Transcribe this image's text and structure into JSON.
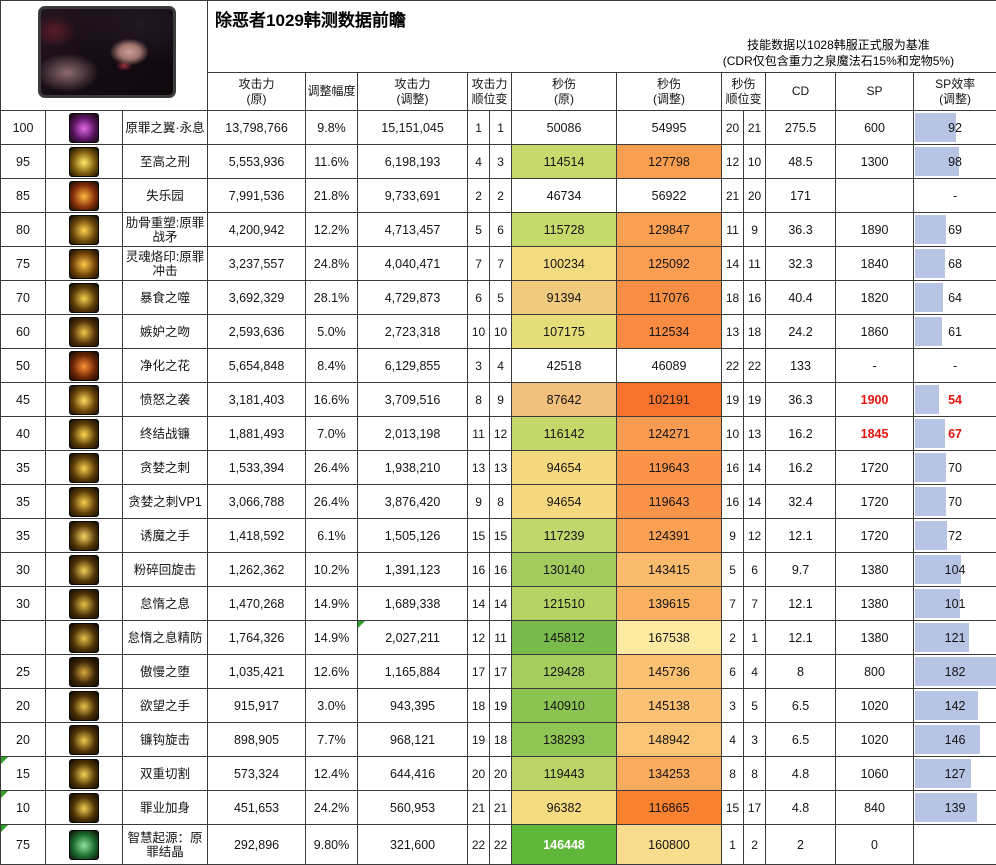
{
  "header": {
    "title": "除恶者1029韩测数据前瞻",
    "note1": "技能数据以1028韩服正式服为基准",
    "note2": "(CDR仅包含重力之泉魔法石15%和宠物5%)",
    "portrait_icon": "class-portrait"
  },
  "columns": {
    "atk_orig": {
      "l1": "攻击力",
      "l2": "(原)"
    },
    "adjust": {
      "l1": "调整幅度",
      "l2": ""
    },
    "atk_new": {
      "l1": "攻击力",
      "l2": "(调整)"
    },
    "atk_rank": {
      "l1": "攻击力",
      "l2": "顺位变"
    },
    "dps_orig": {
      "l1": "秒伤",
      "l2": "(原)"
    },
    "dps_new": {
      "l1": "秒伤",
      "l2": "(调整)"
    },
    "dps_rank": {
      "l1": "秒伤",
      "l2": "顺位变"
    },
    "cd": {
      "l1": "CD",
      "l2": ""
    },
    "sp": {
      "l1": "SP",
      "l2": ""
    },
    "sp_eff": {
      "l1": "SP效率",
      "l2": "(调整)"
    }
  },
  "colors": {
    "databar": "#b7c4e4",
    "flag_red": "#e8140c",
    "corner_green": "#33a02c",
    "border": "#3b3b3b"
  },
  "bar_scale_max": 185,
  "rows": [
    {
      "level": "100",
      "name": "原罪之翼·永息",
      "icon_name": "icon-sin-wings",
      "icon_glow": "#e06ae8",
      "icon_base": "#5a1460",
      "atk_orig": "13,798,766",
      "adjust": "9.8%",
      "atk_new": "15,151,045",
      "atk_rank": [
        "1",
        "1"
      ],
      "dps_orig": "50086",
      "dps_orig_bg": "",
      "dps_new": "54995",
      "dps_new_bg": "",
      "dps_rank": [
        "20",
        "21"
      ],
      "cd": "275.5",
      "sp": "600",
      "eff": "92",
      "eff_bar": 92
    },
    {
      "level": "95",
      "name": "至高之刑",
      "icon_name": "icon-supreme-punishment",
      "icon_glow": "#ffec6a",
      "icon_base": "#7d5a0c",
      "atk_orig": "5,553,936",
      "adjust": "11.6%",
      "atk_new": "6,198,193",
      "atk_rank": [
        "4",
        "3"
      ],
      "dps_orig": "114514",
      "dps_orig_bg": "#c8da6b",
      "dps_new": "127798",
      "dps_new_bg": "#f99e4f",
      "dps_rank": [
        "12",
        "10"
      ],
      "cd": "48.5",
      "sp": "1300",
      "eff": "98",
      "eff_bar": 98
    },
    {
      "level": "85",
      "name": "失乐园",
      "icon_name": "icon-paradise-lost",
      "icon_glow": "#ffb840",
      "icon_base": "#86300a",
      "atk_orig": "7,991,536",
      "adjust": "21.8%",
      "atk_new": "9,733,691",
      "atk_rank": [
        "2",
        "2"
      ],
      "dps_orig": "46734",
      "dps_orig_bg": "",
      "dps_new": "56922",
      "dps_new_bg": "",
      "dps_rank": [
        "21",
        "20"
      ],
      "cd": "171",
      "sp": "",
      "eff": "-",
      "eff_bar": 0
    },
    {
      "level": "80",
      "name": "肋骨重塑:原罪战矛",
      "icon_name": "icon-rib-spear",
      "icon_glow": "#ffd24e",
      "icon_base": "#6d4a0c",
      "atk_orig": "4,200,942",
      "adjust": "12.2%",
      "atk_new": "4,713,457",
      "atk_rank": [
        "5",
        "6"
      ],
      "dps_orig": "115728",
      "dps_orig_bg": "#c6d96b",
      "dps_new": "129847",
      "dps_new_bg": "#f9a053",
      "dps_rank": [
        "11",
        "9"
      ],
      "cd": "36.3",
      "sp": "1890",
      "eff": "69",
      "eff_bar": 69
    },
    {
      "level": "75",
      "name": "灵魂烙印:原罪冲击",
      "icon_name": "icon-soul-brand",
      "icon_glow": "#ffc94a",
      "icon_base": "#744408",
      "atk_orig": "3,237,557",
      "adjust": "24.8%",
      "atk_new": "4,040,471",
      "atk_rank": [
        "7",
        "7"
      ],
      "dps_orig": "100234",
      "dps_orig_bg": "#f3dc80",
      "dps_new": "125092",
      "dps_new_bg": "#f99e52",
      "dps_rank": [
        "14",
        "11"
      ],
      "cd": "32.3",
      "sp": "1840",
      "eff": "68",
      "eff_bar": 68
    },
    {
      "level": "70",
      "name": "暴食之噬",
      "icon_name": "icon-gluttony-bite",
      "icon_glow": "#f5d04e",
      "icon_base": "#5f3e08",
      "atk_orig": "3,692,329",
      "adjust": "28.1%",
      "atk_new": "4,729,873",
      "atk_rank": [
        "6",
        "5"
      ],
      "dps_orig": "91394",
      "dps_orig_bg": "#f0cb7d",
      "dps_new": "117076",
      "dps_new_bg": "#f88d44",
      "dps_rank": [
        "18",
        "16"
      ],
      "cd": "40.4",
      "sp": "1820",
      "eff": "64",
      "eff_bar": 64
    },
    {
      "level": "60",
      "name": "嫉妒之吻",
      "icon_name": "icon-envy-kiss",
      "icon_glow": "#f2c648",
      "icon_base": "#553408",
      "atk_orig": "2,593,636",
      "adjust": "5.0%",
      "atk_new": "2,723,318",
      "atk_rank": [
        "10",
        "10"
      ],
      "dps_orig": "107175",
      "dps_orig_bg": "#e6de7a",
      "dps_new": "112534",
      "dps_new_bg": "#f88a42",
      "dps_rank": [
        "13",
        "18"
      ],
      "cd": "24.2",
      "sp": "1860",
      "eff": "61",
      "eff_bar": 61
    },
    {
      "level": "50",
      "name": "净化之花",
      "icon_name": "icon-purify-flower",
      "icon_glow": "#ff9435",
      "icon_base": "#6e2606",
      "atk_orig": "5,654,848",
      "adjust": "8.4%",
      "atk_new": "6,129,855",
      "atk_rank": [
        "3",
        "4"
      ],
      "dps_orig": "42518",
      "dps_orig_bg": "",
      "dps_new": "46089",
      "dps_new_bg": "",
      "dps_rank": [
        "22",
        "22"
      ],
      "cd": "133",
      "sp": "-",
      "eff": "-",
      "eff_bar": 0
    },
    {
      "level": "45",
      "name": "愤怒之袭",
      "icon_name": "icon-wrath-assault",
      "icon_glow": "#ffd95c",
      "icon_base": "#6a4409",
      "atk_orig": "3,181,403",
      "adjust": "16.6%",
      "atk_new": "3,709,516",
      "atk_rank": [
        "8",
        "9"
      ],
      "dps_orig": "87642",
      "dps_orig_bg": "#f0c07c",
      "dps_new": "102191",
      "dps_new_bg": "#f7722c",
      "dps_rank": [
        "19",
        "19"
      ],
      "cd": "36.3",
      "sp": "1900",
      "sp_red": true,
      "eff": "54",
      "eff_red": true,
      "eff_bar": 54
    },
    {
      "level": "40",
      "name": "终结战镰",
      "icon_name": "icon-final-scythe",
      "icon_glow": "#ffd64f",
      "icon_base": "#5c3c08",
      "atk_orig": "1,881,493",
      "adjust": "7.0%",
      "atk_new": "2,013,198",
      "atk_rank": [
        "11",
        "12"
      ],
      "dps_orig": "116142",
      "dps_orig_bg": "#c5d96a",
      "dps_new": "124271",
      "dps_new_bg": "#f89a50",
      "dps_rank": [
        "10",
        "13"
      ],
      "cd": "16.2",
      "sp": "1845",
      "sp_red": true,
      "eff": "67",
      "eff_red": true,
      "eff_bar": 67
    },
    {
      "level": "35",
      "name": "贪婪之刺",
      "icon_name": "icon-greed-thorn",
      "icon_glow": "#f7cf4d",
      "icon_base": "#5e3d08",
      "atk_orig": "1,533,394",
      "adjust": "26.4%",
      "atk_new": "1,938,210",
      "atk_rank": [
        "13",
        "13"
      ],
      "dps_orig": "94654",
      "dps_orig_bg": "#f5d97f",
      "dps_new": "119643",
      "dps_new_bg": "#f9944a",
      "dps_rank": [
        "16",
        "14"
      ],
      "cd": "16.2",
      "sp": "1720",
      "eff": "70",
      "eff_bar": 70
    },
    {
      "level": "35",
      "name": "贪婪之刺VP1",
      "icon_name": "icon-greed-thorn-vp1",
      "icon_glow": "#f7cf4d",
      "icon_base": "#5e3d08",
      "atk_orig": "3,066,788",
      "adjust": "26.4%",
      "atk_new": "3,876,420",
      "atk_rank": [
        "9",
        "8"
      ],
      "dps_orig": "94654",
      "dps_orig_bg": "#f5d97f",
      "dps_new": "119643",
      "dps_new_bg": "#f9944a",
      "dps_rank": [
        "16",
        "14"
      ],
      "cd": "32.4",
      "sp": "1720",
      "eff": "70",
      "eff_bar": 70
    },
    {
      "level": "35",
      "name": "诱魔之手",
      "icon_name": "icon-tempt-hand",
      "icon_glow": "#f7d567",
      "icon_base": "#5a3a08",
      "atk_orig": "1,418,592",
      "adjust": "6.1%",
      "atk_new": "1,505,126",
      "atk_rank": [
        "15",
        "15"
      ],
      "dps_orig": "117239",
      "dps_orig_bg": "#c0d76c",
      "dps_new": "124391",
      "dps_new_bg": "#f9a055",
      "dps_rank": [
        "9",
        "12"
      ],
      "cd": "12.1",
      "sp": "1720",
      "eff": "72",
      "eff_bar": 72
    },
    {
      "level": "30",
      "name": "粉碎回旋击",
      "icon_name": "icon-crush-spin",
      "icon_glow": "#f0cf55",
      "icon_base": "#523508",
      "atk_orig": "1,262,362",
      "adjust": "10.2%",
      "atk_new": "1,391,123",
      "atk_rank": [
        "16",
        "16"
      ],
      "dps_orig": "130140",
      "dps_orig_bg": "#a2cc5e",
      "dps_new": "143415",
      "dps_new_bg": "#fabb6d",
      "dps_rank": [
        "5",
        "6"
      ],
      "cd": "9.7",
      "sp": "1380",
      "eff": "104",
      "eff_bar": 104
    },
    {
      "level": "30",
      "name": "怠惰之息",
      "icon_name": "icon-sloth-breath",
      "icon_glow": "#e8c24a",
      "icon_base": "#4e3206",
      "atk_orig": "1,470,268",
      "adjust": "14.9%",
      "atk_new": "1,689,338",
      "atk_rank": [
        "14",
        "14"
      ],
      "dps_orig": "121510",
      "dps_orig_bg": "#b6d366",
      "dps_new": "139615",
      "dps_new_bg": "#fab061",
      "dps_rank": [
        "7",
        "7"
      ],
      "cd": "12.1",
      "sp": "1380",
      "eff": "101",
      "eff_bar": 101
    },
    {
      "level": "",
      "name": "怠惰之息精防",
      "icon_name": "icon-sloth-breath-def",
      "icon_glow": "#e8c24a",
      "icon_base": "#4e3206",
      "atk_orig": "1,764,326",
      "adjust": "14.9%",
      "atk_new": "2,027,211",
      "atk_new_corner": true,
      "atk_rank": [
        "12",
        "11"
      ],
      "dps_orig": "145812",
      "dps_orig_bg": "#79bb4c",
      "dps_new": "167538",
      "dps_new_bg": "#fdeaa2",
      "dps_rank": [
        "2",
        "1"
      ],
      "cd": "12.1",
      "sp": "1380",
      "eff": "121",
      "eff_bar": 121
    },
    {
      "level": "25",
      "name": "傲慢之堕",
      "icon_name": "icon-pride-fall",
      "icon_glow": "#d8a93c",
      "icon_base": "#3c2505",
      "atk_orig": "1,035,421",
      "adjust": "12.6%",
      "atk_new": "1,165,884",
      "atk_rank": [
        "17",
        "17"
      ],
      "dps_orig": "129428",
      "dps_orig_bg": "#a4cc5f",
      "dps_new": "145736",
      "dps_new_bg": "#fbc172",
      "dps_rank": [
        "6",
        "4"
      ],
      "cd": "8",
      "sp": "800",
      "eff": "182",
      "eff_bar": 182
    },
    {
      "level": "20",
      "name": "欲望之手",
      "icon_name": "icon-desire-hand",
      "icon_glow": "#e9c148",
      "icon_base": "#4a2f06",
      "atk_orig": "915,917",
      "adjust": "3.0%",
      "atk_new": "943,395",
      "atk_rank": [
        "18",
        "19"
      ],
      "dps_orig": "140910",
      "dps_orig_bg": "#8cc453",
      "dps_new": "145138",
      "dps_new_bg": "#fbc175",
      "dps_rank": [
        "3",
        "5"
      ],
      "cd": "6.5",
      "sp": "1020",
      "eff": "142",
      "eff_bar": 142
    },
    {
      "level": "20",
      "name": "镰钩旋击",
      "icon_name": "icon-hook-spin",
      "icon_glow": "#eec94e",
      "icon_base": "#513406",
      "atk_orig": "898,905",
      "adjust": "7.7%",
      "atk_new": "968,121",
      "atk_rank": [
        "19",
        "18"
      ],
      "dps_orig": "138293",
      "dps_orig_bg": "#90c655",
      "dps_new": "148942",
      "dps_new_bg": "#fbc577",
      "dps_rank": [
        "4",
        "3"
      ],
      "cd": "6.5",
      "sp": "1020",
      "eff": "146",
      "eff_bar": 146
    },
    {
      "level": "15",
      "level_corner": true,
      "name": "双重切割",
      "icon_name": "icon-double-slash",
      "icon_glow": "#f3d355",
      "icon_base": "#553807",
      "atk_orig": "573,324",
      "adjust": "12.4%",
      "atk_new": "644,416",
      "atk_rank": [
        "20",
        "20"
      ],
      "dps_orig": "119443",
      "dps_orig_bg": "#bbd468",
      "dps_new": "134253",
      "dps_new_bg": "#f9ab5e",
      "dps_rank": [
        "8",
        "8"
      ],
      "cd": "4.8",
      "sp": "1060",
      "eff": "127",
      "eff_bar": 127
    },
    {
      "level": "10",
      "level_corner": true,
      "name": "罪业加身",
      "icon_name": "icon-sin-burden",
      "icon_glow": "#f0cd50",
      "icon_base": "#4f3306",
      "atk_orig": "451,653",
      "adjust": "24.2%",
      "atk_new": "560,953",
      "atk_rank": [
        "21",
        "21"
      ],
      "dps_orig": "96382",
      "dps_orig_bg": "#f6dc80",
      "dps_new": "116865",
      "dps_new_bg": "#f8822f",
      "dps_rank": [
        "15",
        "17"
      ],
      "cd": "4.8",
      "sp": "840",
      "eff": "139",
      "eff_bar": 139
    },
    {
      "level": "75",
      "level_corner": true,
      "name": "智慧起源：原罪结晶",
      "icon_name": "icon-wisdom-origin",
      "icon_glow": "#8fe49a",
      "icon_base": "#1c6b2e",
      "atk_orig": "292,896",
      "adjust": "9.80%",
      "atk_new": "321,600",
      "atk_rank": [
        "22",
        "22"
      ],
      "dps_orig": "146448",
      "dps_orig_bg": "#5fb83a",
      "dps_orig_white": true,
      "dps_new": "160800",
      "dps_new_bg": "#f8dd8e",
      "dps_rank": [
        "1",
        "2"
      ],
      "cd": "2",
      "sp": "0",
      "eff": "",
      "eff_bar": 0,
      "tall": true
    }
  ]
}
